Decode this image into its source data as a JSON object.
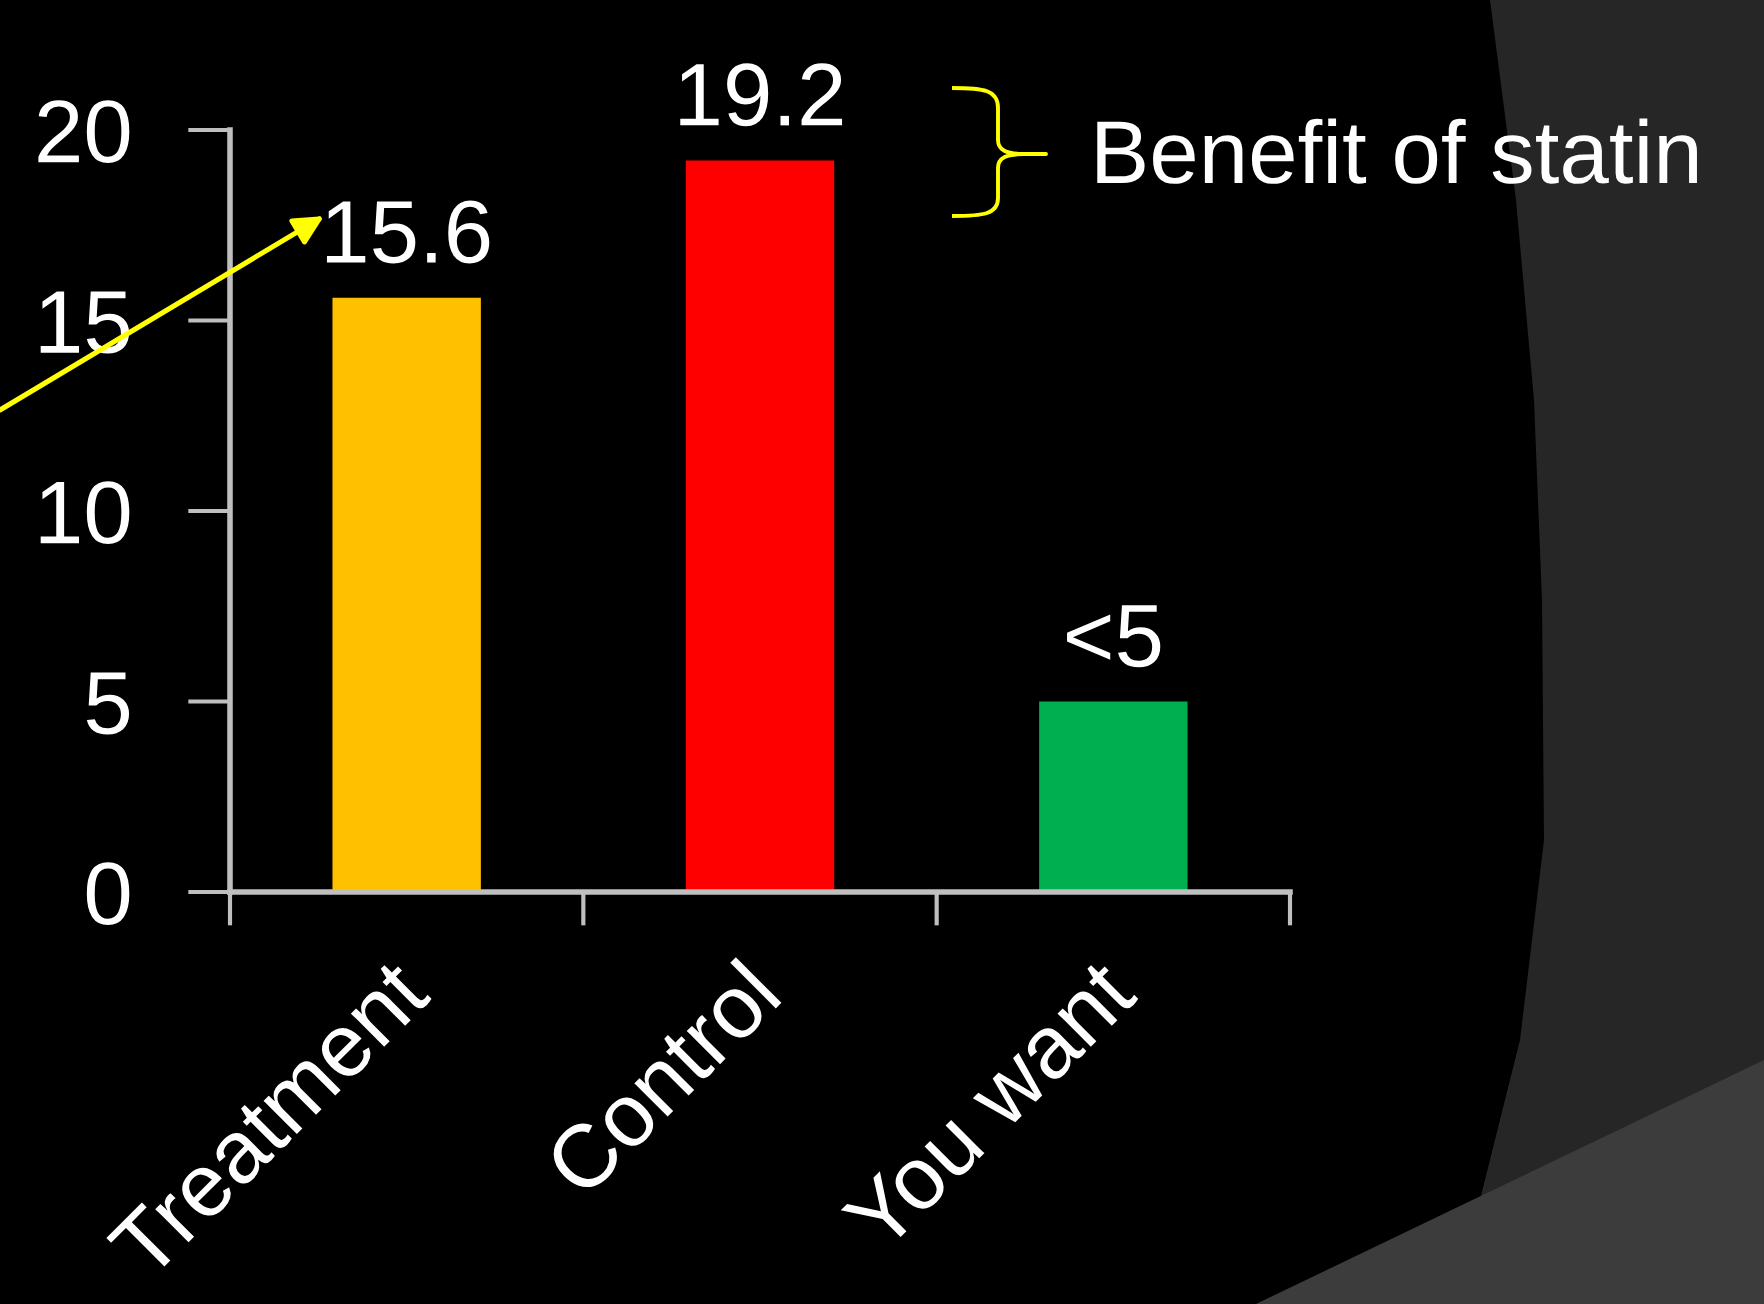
{
  "chart_data": {
    "type": "bar",
    "categories": [
      "Treatment",
      "Control",
      "You want"
    ],
    "values": [
      15.6,
      19.2,
      5
    ],
    "colors": [
      "#ffc000",
      "#ff0000",
      "#00b050"
    ],
    "value_labels": [
      "15.6",
      "19.2",
      "<5"
    ],
    "ylim": [
      0,
      20
    ],
    "yticks": [
      0,
      5,
      10,
      15,
      20
    ],
    "annotations": [
      "Benefit of statin"
    ]
  }
}
